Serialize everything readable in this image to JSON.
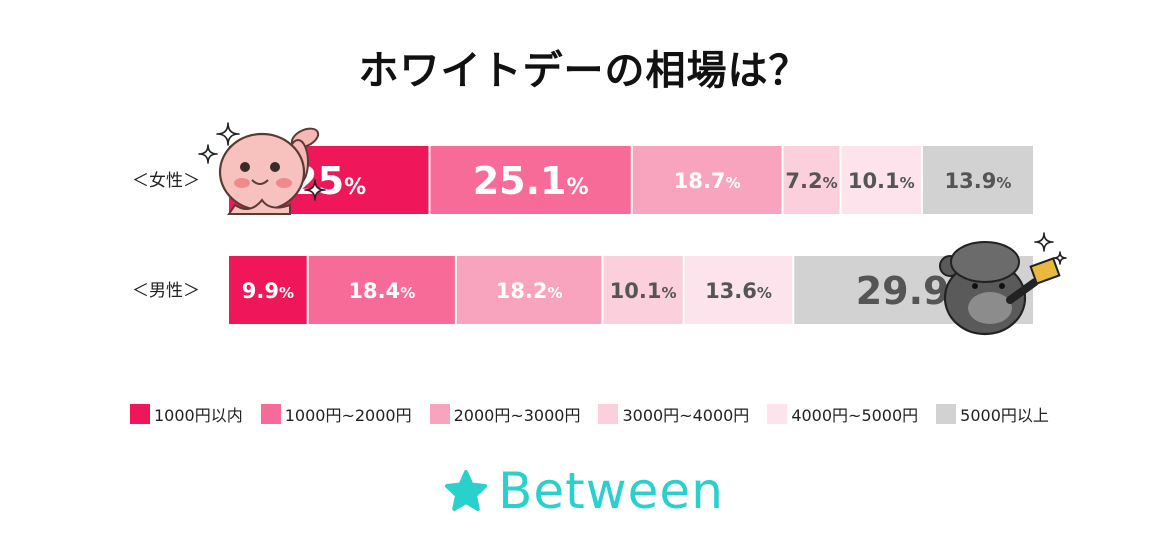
{
  "chart_data": {
    "type": "bar",
    "orientation": "horizontal",
    "stacked": true,
    "normalized": true,
    "title": "ホワイトデーの相場は？",
    "categories": [
      "＜女性＞",
      "＜男性＞"
    ],
    "series": [
      {
        "name": "1000円以内",
        "values": [
          25,
          9.9
        ],
        "labels": [
          "25",
          "9.9"
        ],
        "color": "#f0165a"
      },
      {
        "name": "1000円~2000円",
        "values": [
          25.1,
          18.4
        ],
        "labels": [
          "25.1",
          "18.4"
        ],
        "color": "#f76b98"
      },
      {
        "name": "2000円~3000円",
        "values": [
          18.7,
          18.2
        ],
        "labels": [
          "18.7",
          "18.2"
        ],
        "color": "#f9a4bf"
      },
      {
        "name": "3000円~4000円",
        "values": [
          7.2,
          10.1
        ],
        "labels": [
          "7.2",
          "10.1"
        ],
        "color": "#fccfdc"
      },
      {
        "name": "4000円~5000円",
        "values": [
          10.1,
          13.6
        ],
        "labels": [
          "10.1",
          "13.6"
        ],
        "color": "#fde4ec"
      },
      {
        "name": "5000円以上",
        "values": [
          13.9,
          29.9
        ],
        "labels": [
          "13.9",
          "29.9"
        ],
        "color": "#d2d2d2"
      }
    ],
    "unit": "%",
    "legend_position": "bottom"
  },
  "brand": {
    "name": "Between",
    "color": "#2ad1cc"
  },
  "icons": [
    "sparkle-icon",
    "rabbit-mascot-icon",
    "bear-mascot-icon",
    "star-logo-icon"
  ]
}
